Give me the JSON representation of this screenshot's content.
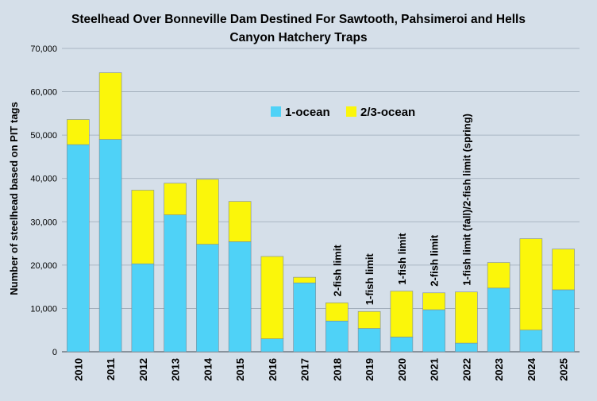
{
  "colors": {
    "background": "#d5dfe9",
    "one_ocean": "#4fd2f7",
    "two_three_ocean": "#fbf60a",
    "gridline": "#9aa8b6",
    "bar_edge": "#7d8a96",
    "text": "#000000"
  },
  "chart_data": {
    "type": "bar",
    "stacked": true,
    "title_lines": [
      "Steelhead Over Bonneville Dam Destined For Sawtooth, Pahsimeroi and Hells",
      "Canyon Hatchery Traps"
    ],
    "xlabel": "",
    "ylabel": "Number of steelhead based on PIT tags",
    "ylim": [
      0,
      70000
    ],
    "yticks": [
      0,
      10000,
      20000,
      30000,
      40000,
      50000,
      60000,
      70000
    ],
    "ytick_labels": [
      "0",
      "10,000",
      "20,000",
      "30,000",
      "40,000",
      "50,000",
      "60,000",
      "70,000"
    ],
    "grid": true,
    "legend_position": "top-center",
    "categories": [
      "2010",
      "2011",
      "2012",
      "2013",
      "2014",
      "2015",
      "2016",
      "2017",
      "2018",
      "2019",
      "2020",
      "2021",
      "2022",
      "2023",
      "2024",
      "2025"
    ],
    "series": [
      {
        "name": "1-ocean",
        "color": "#4fd2f7",
        "values": [
          47800,
          49000,
          20300,
          31600,
          24800,
          25400,
          3000,
          15900,
          7100,
          5400,
          3400,
          9700,
          2000,
          14700,
          5000,
          14300
        ]
      },
      {
        "name": "2/3-ocean",
        "color": "#fbf60a",
        "values": [
          5800,
          15400,
          17000,
          7300,
          15000,
          9300,
          19000,
          1300,
          4200,
          3900,
          10600,
          3900,
          11800,
          5900,
          21100,
          9400
        ]
      }
    ],
    "annotations": [
      {
        "category": "2018",
        "text": "2-fish limit"
      },
      {
        "category": "2019",
        "text": "1-fish limit"
      },
      {
        "category": "2020",
        "text": "1-fish limit"
      },
      {
        "category": "2021",
        "text": "2-fish limit"
      },
      {
        "category": "2022",
        "text": "1-fish limit (fall)/2-fish limit (spring)"
      }
    ]
  }
}
